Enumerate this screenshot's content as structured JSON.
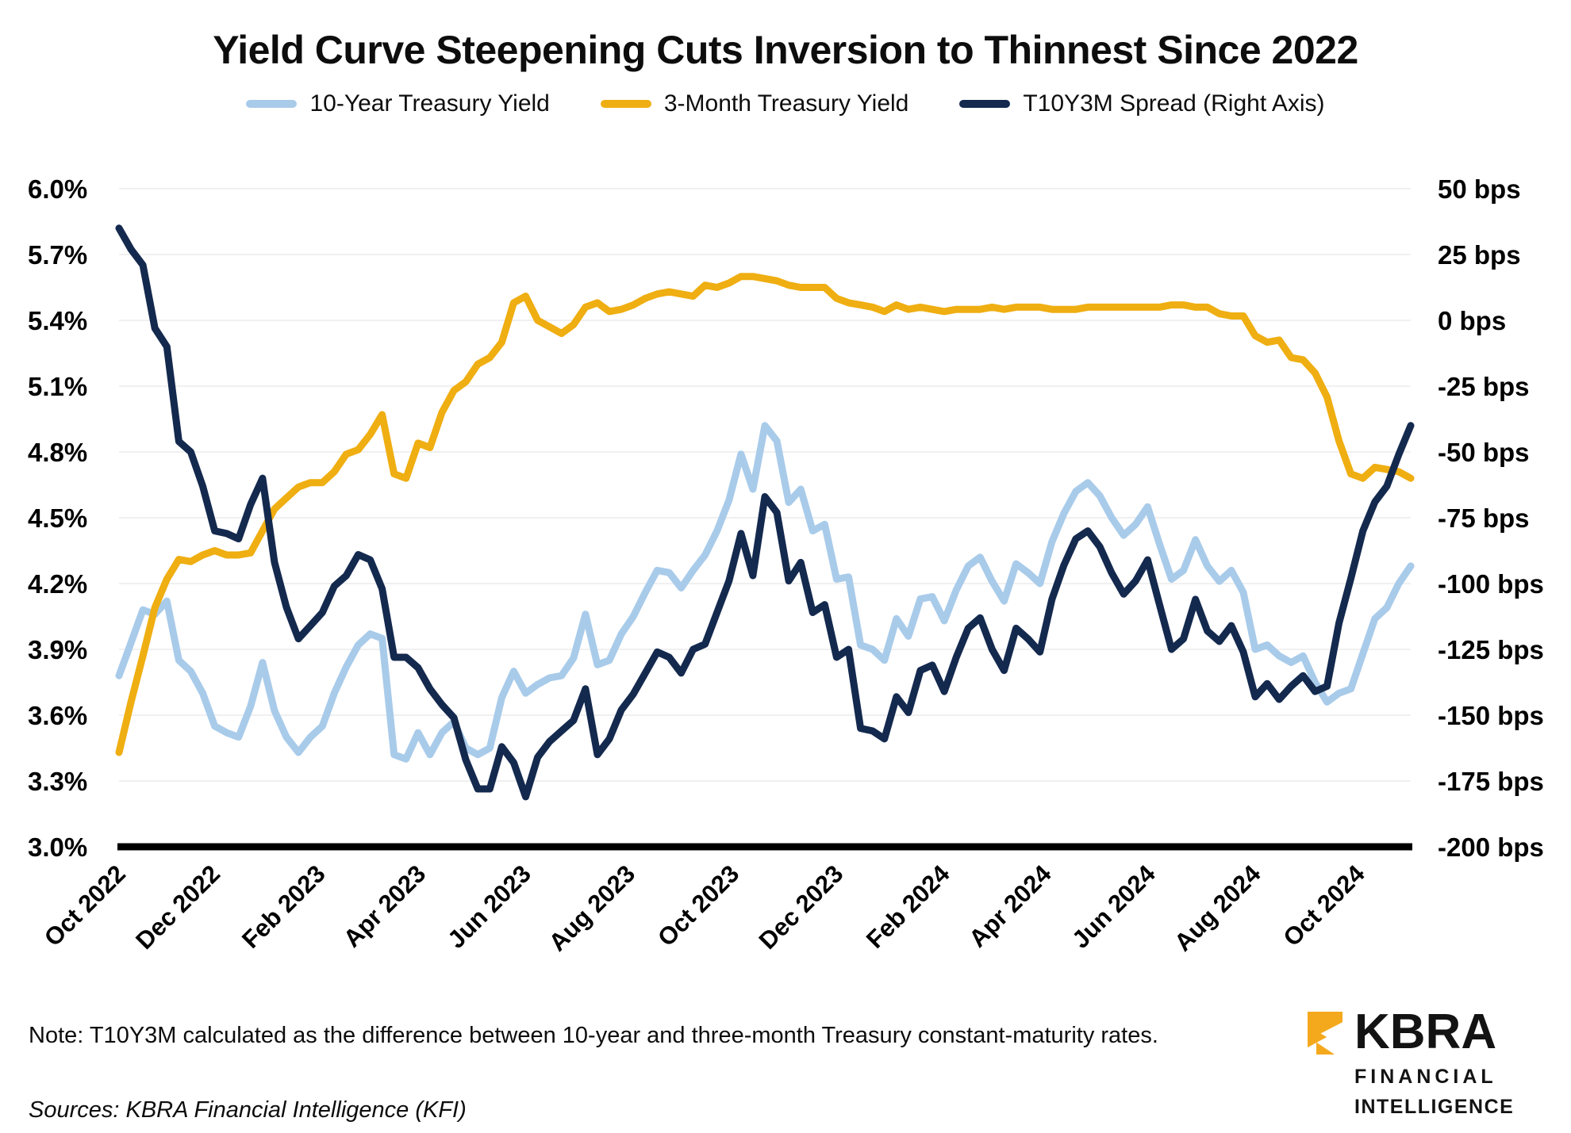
{
  "title": "Yield Curve Steepening Cuts Inversion to Thinnest Since 2022",
  "legend": [
    {
      "label": "10-Year Treasury Yield",
      "color": "#A9CBEA"
    },
    {
      "label": "3-Month Treasury Yield",
      "color": "#EFAE11"
    },
    {
      "label": "T10Y3M Spread (Right Axis)",
      "color": "#14294E"
    }
  ],
  "note": "Note: T10Y3M calculated as the difference between 10-year and three-month Treasury constant-maturity rates.",
  "sources": "Sources: KBRA Financial Intelligence (KFI)",
  "logo": {
    "name": "KBRA",
    "line1": "FINANCIAL",
    "line2": "INTELLIGENCE",
    "gold": "#F4A91D"
  },
  "chart_data": {
    "type": "line",
    "x_unit": "weekly observations, Oct 2022 - Nov 2024",
    "grid": "horizontal, light gray",
    "legend_position": "top center",
    "colors": {
      "blue": "#A9CBEA",
      "gold": "#EFAE11",
      "navy": "#14294E",
      "gridline": "#F0F0F0",
      "baseline": "#000000"
    },
    "left_axis": {
      "title": "",
      "min": 3.0,
      "max": 6.0,
      "step": 0.3,
      "ticks": [
        {
          "label": "6.0%",
          "value": 6.0
        },
        {
          "label": "5.7%",
          "value": 5.7
        },
        {
          "label": "5.4%",
          "value": 5.4
        },
        {
          "label": "5.1%",
          "value": 5.1
        },
        {
          "label": "4.8%",
          "value": 4.8
        },
        {
          "label": "4.5%",
          "value": 4.5
        },
        {
          "label": "4.2%",
          "value": 4.2
        },
        {
          "label": "3.9%",
          "value": 3.9
        },
        {
          "label": "3.6%",
          "value": 3.6
        },
        {
          "label": "3.3%",
          "value": 3.3
        },
        {
          "label": "3.0%",
          "value": 3.0
        }
      ]
    },
    "right_axis": {
      "title": "",
      "min": -200,
      "max": 50,
      "step": 25,
      "ticks": [
        {
          "label": "50 bps",
          "value": 50
        },
        {
          "label": "25 bps",
          "value": 25
        },
        {
          "label": "0 bps",
          "value": 0
        },
        {
          "label": "-25 bps",
          "value": -25
        },
        {
          "label": "-50 bps",
          "value": -50
        },
        {
          "label": "-75 bps",
          "value": -75
        },
        {
          "label": "-100 bps",
          "value": -100
        },
        {
          "label": "-125 bps",
          "value": -125
        },
        {
          "label": "-150 bps",
          "value": -150
        },
        {
          "label": "-175 bps",
          "value": -175
        },
        {
          "label": "-200 bps",
          "value": -200
        }
      ]
    },
    "x_ticks": [
      {
        "label": "Oct 2022",
        "pos": 0
      },
      {
        "label": "Dec 2022",
        "pos": 7.9
      },
      {
        "label": "Feb 2023",
        "pos": 16.7
      },
      {
        "label": "Apr 2023",
        "pos": 25.1
      },
      {
        "label": "Jun 2023",
        "pos": 33.9
      },
      {
        "label": "Aug 2023",
        "pos": 42.6
      },
      {
        "label": "Oct 2023",
        "pos": 51.3
      },
      {
        "label": "Dec 2023",
        "pos": 60.0
      },
      {
        "label": "Feb 2024",
        "pos": 68.9
      },
      {
        "label": "Apr 2024",
        "pos": 77.4
      },
      {
        "label": "Jun 2024",
        "pos": 86.1
      },
      {
        "label": "Aug 2024",
        "pos": 94.9
      },
      {
        "label": "Oct 2024",
        "pos": 103.6
      }
    ],
    "series": [
      {
        "name": "10-Year Treasury Yield",
        "axis": "left",
        "color": "#A9CBEA",
        "values": [
          3.78,
          3.93,
          4.08,
          4.06,
          4.12,
          3.85,
          3.8,
          3.7,
          3.55,
          3.52,
          3.5,
          3.64,
          3.84,
          3.62,
          3.5,
          3.43,
          3.5,
          3.55,
          3.7,
          3.82,
          3.92,
          3.97,
          3.95,
          3.42,
          3.4,
          3.52,
          3.42,
          3.52,
          3.57,
          3.45,
          3.42,
          3.45,
          3.68,
          3.8,
          3.7,
          3.74,
          3.77,
          3.78,
          3.86,
          4.06,
          3.83,
          3.85,
          3.97,
          4.05,
          4.16,
          4.26,
          4.25,
          4.18,
          4.26,
          4.33,
          4.44,
          4.58,
          4.79,
          4.63,
          4.92,
          4.85,
          4.57,
          4.63,
          4.44,
          4.47,
          4.22,
          4.23,
          3.92,
          3.9,
          3.85,
          4.04,
          3.96,
          4.13,
          4.14,
          4.03,
          4.17,
          4.28,
          4.32,
          4.21,
          4.12,
          4.29,
          4.25,
          4.2,
          4.39,
          4.52,
          4.62,
          4.66,
          4.6,
          4.5,
          4.42,
          4.47,
          4.55,
          4.38,
          4.22,
          4.26,
          4.4,
          4.28,
          4.21,
          4.26,
          4.16,
          3.9,
          3.92,
          3.87,
          3.84,
          3.87,
          3.75,
          3.66,
          3.7,
          3.72,
          3.88,
          4.04,
          4.09,
          4.2,
          4.28
        ]
      },
      {
        "name": "3-Month Treasury Yield",
        "axis": "left",
        "color": "#EFAE11",
        "values": [
          3.43,
          3.66,
          3.87,
          4.09,
          4.22,
          4.31,
          4.3,
          4.33,
          4.35,
          4.33,
          4.33,
          4.34,
          4.44,
          4.54,
          4.59,
          4.64,
          4.66,
          4.66,
          4.71,
          4.79,
          4.81,
          4.88,
          4.97,
          4.7,
          4.68,
          4.84,
          4.82,
          4.98,
          5.08,
          5.12,
          5.2,
          5.23,
          5.3,
          5.48,
          5.51,
          5.4,
          5.37,
          5.34,
          5.38,
          5.46,
          5.48,
          5.44,
          5.45,
          5.47,
          5.5,
          5.52,
          5.53,
          5.52,
          5.51,
          5.56,
          5.55,
          5.57,
          5.6,
          5.6,
          5.59,
          5.58,
          5.56,
          5.55,
          5.55,
          5.55,
          5.5,
          5.48,
          5.47,
          5.46,
          5.44,
          5.47,
          5.45,
          5.46,
          5.45,
          5.44,
          5.45,
          5.45,
          5.45,
          5.46,
          5.45,
          5.46,
          5.46,
          5.46,
          5.45,
          5.45,
          5.45,
          5.46,
          5.46,
          5.46,
          5.46,
          5.46,
          5.46,
          5.46,
          5.47,
          5.47,
          5.46,
          5.46,
          5.43,
          5.42,
          5.42,
          5.33,
          5.3,
          5.31,
          5.23,
          5.22,
          5.16,
          5.05,
          4.85,
          4.7,
          4.68,
          4.73,
          4.72,
          4.71,
          4.68
        ]
      },
      {
        "name": "T10Y3M Spread (Right Axis)",
        "axis": "right",
        "color": "#14294E",
        "values": [
          35,
          27,
          21,
          -3,
          -10,
          -46,
          -50,
          -63,
          -80,
          -81,
          -83,
          -70,
          -60,
          -92,
          -109,
          -121,
          -116,
          -111,
          -101,
          -97,
          -89,
          -91,
          -102,
          -128,
          -128,
          -132,
          -140,
          -146,
          -151,
          -167,
          -178,
          -178,
          -162,
          -168,
          -181,
          -166,
          -160,
          -156,
          -152,
          -140,
          -165,
          -159,
          -148,
          -142,
          -134,
          -126,
          -128,
          -134,
          -125,
          -123,
          -111,
          -99,
          -81,
          -97,
          -67,
          -73,
          -99,
          -92,
          -111,
          -108,
          -128,
          -125,
          -155,
          -156,
          -159,
          -143,
          -149,
          -133,
          -131,
          -141,
          -128,
          -117,
          -113,
          -125,
          -133,
          -117,
          -121,
          -126,
          -106,
          -93,
          -83,
          -80,
          -86,
          -96,
          -104,
          -99,
          -91,
          -108,
          -125,
          -121,
          -106,
          -118,
          -122,
          -116,
          -126,
          -143,
          -138,
          -144,
          -139,
          -135,
          -141,
          -139,
          -115,
          -98,
          -80,
          -69,
          -63,
          -51,
          -40
        ]
      }
    ]
  }
}
